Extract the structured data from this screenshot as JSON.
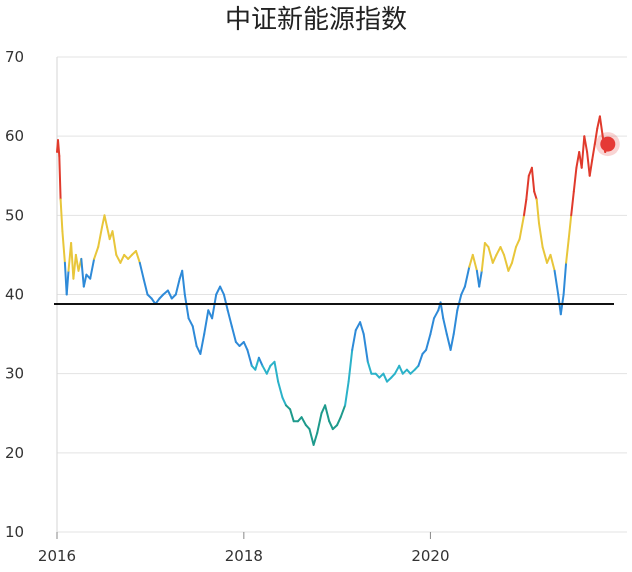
{
  "chart_data": {
    "type": "line",
    "title": "中证新能源指数",
    "xlabel": "",
    "ylabel": "",
    "ylim": [
      10,
      70
    ],
    "xlim": [
      "2016-01-01",
      "2021-12-31"
    ],
    "yticks": [
      "70",
      "60",
      "50",
      "40",
      "30",
      "20",
      "10"
    ],
    "xticks": [
      "2016",
      "2018",
      "2020"
    ],
    "grid": "horizontal",
    "reference_line": 38.8,
    "color_scale": {
      "red": "#e03a2c",
      "yellow": "#e8c63a",
      "blue": "#2e8ad8",
      "cyan": "#2bb2c9",
      "teal": "#1e9a8c"
    },
    "latest_marker": {
      "x": "2021-11-25",
      "y": 59,
      "color": "#e53935"
    },
    "series": [
      {
        "points": [
          [
            "2016-01-01",
            58
          ],
          [
            "2016-01-05",
            59.5
          ],
          [
            "2016-01-10",
            57.5
          ],
          [
            "2016-01-15",
            52
          ],
          [
            "2016-01-22",
            48
          ],
          [
            "2016-02-01",
            44
          ],
          [
            "2016-02-08",
            40
          ],
          [
            "2016-02-15",
            43
          ],
          [
            "2016-02-25",
            46.5
          ],
          [
            "2016-03-05",
            42
          ],
          [
            "2016-03-15",
            45
          ],
          [
            "2016-03-25",
            43
          ],
          [
            "2016-04-05",
            44.5
          ],
          [
            "2016-04-15",
            41
          ],
          [
            "2016-04-25",
            42.5
          ],
          [
            "2016-05-10",
            42
          ],
          [
            "2016-05-25",
            44.5
          ],
          [
            "2016-06-10",
            46
          ],
          [
            "2016-06-25",
            48.5
          ],
          [
            "2016-07-05",
            50
          ],
          [
            "2016-07-15",
            48.5
          ],
          [
            "2016-07-25",
            47
          ],
          [
            "2016-08-05",
            48
          ],
          [
            "2016-08-20",
            45
          ],
          [
            "2016-09-05",
            44
          ],
          [
            "2016-09-20",
            45
          ],
          [
            "2016-10-05",
            44.5
          ],
          [
            "2016-10-20",
            45
          ],
          [
            "2016-11-05",
            45.5
          ],
          [
            "2016-11-20",
            44
          ],
          [
            "2016-12-05",
            42
          ],
          [
            "2016-12-20",
            40
          ],
          [
            "2017-01-05",
            39.5
          ],
          [
            "2017-01-20",
            38.8
          ],
          [
            "2017-02-05",
            39.5
          ],
          [
            "2017-02-20",
            40
          ],
          [
            "2017-03-10",
            40.5
          ],
          [
            "2017-03-25",
            39.5
          ],
          [
            "2017-04-10",
            40
          ],
          [
            "2017-04-25",
            42
          ],
          [
            "2017-05-05",
            43
          ],
          [
            "2017-05-15",
            40
          ],
          [
            "2017-05-30",
            37
          ],
          [
            "2017-06-15",
            36
          ],
          [
            "2017-06-30",
            33.5
          ],
          [
            "2017-07-15",
            32.5
          ],
          [
            "2017-07-30",
            35
          ],
          [
            "2017-08-15",
            38
          ],
          [
            "2017-08-30",
            37
          ],
          [
            "2017-09-15",
            40
          ],
          [
            "2017-09-30",
            41
          ],
          [
            "2017-10-15",
            40
          ],
          [
            "2017-10-30",
            38
          ],
          [
            "2017-11-15",
            36
          ],
          [
            "2017-12-01",
            34
          ],
          [
            "2017-12-15",
            33.5
          ],
          [
            "2018-01-01",
            34
          ],
          [
            "2018-01-15",
            33
          ],
          [
            "2018-02-01",
            31
          ],
          [
            "2018-02-15",
            30.5
          ],
          [
            "2018-03-01",
            32
          ],
          [
            "2018-03-15",
            31
          ],
          [
            "2018-04-01",
            30
          ],
          [
            "2018-04-15",
            31
          ],
          [
            "2018-05-01",
            31.5
          ],
          [
            "2018-05-15",
            29
          ],
          [
            "2018-06-01",
            27
          ],
          [
            "2018-06-15",
            26
          ],
          [
            "2018-07-01",
            25.5
          ],
          [
            "2018-07-15",
            24
          ],
          [
            "2018-08-01",
            24
          ],
          [
            "2018-08-15",
            24.5
          ],
          [
            "2018-09-01",
            23.5
          ],
          [
            "2018-09-15",
            23
          ],
          [
            "2018-10-01",
            21
          ],
          [
            "2018-10-15",
            22.5
          ],
          [
            "2018-11-01",
            25
          ],
          [
            "2018-11-15",
            26
          ],
          [
            "2018-12-01",
            24
          ],
          [
            "2018-12-15",
            23
          ],
          [
            "2019-01-01",
            23.5
          ],
          [
            "2019-01-15",
            24.5
          ],
          [
            "2019-02-01",
            26
          ],
          [
            "2019-02-15",
            29
          ],
          [
            "2019-03-01",
            33
          ],
          [
            "2019-03-15",
            35.5
          ],
          [
            "2019-04-01",
            36.5
          ],
          [
            "2019-04-15",
            35
          ],
          [
            "2019-05-01",
            31.5
          ],
          [
            "2019-05-15",
            30
          ],
          [
            "2019-06-01",
            30
          ],
          [
            "2019-06-15",
            29.5
          ],
          [
            "2019-07-01",
            30
          ],
          [
            "2019-07-15",
            29
          ],
          [
            "2019-08-01",
            29.5
          ],
          [
            "2019-08-15",
            30
          ],
          [
            "2019-09-01",
            31
          ],
          [
            "2019-09-15",
            30
          ],
          [
            "2019-10-01",
            30.5
          ],
          [
            "2019-10-15",
            30
          ],
          [
            "2019-11-01",
            30.5
          ],
          [
            "2019-11-15",
            31
          ],
          [
            "2019-12-01",
            32.5
          ],
          [
            "2019-12-15",
            33
          ],
          [
            "2020-01-01",
            35
          ],
          [
            "2020-01-15",
            37
          ],
          [
            "2020-02-01",
            38
          ],
          [
            "2020-02-10",
            39
          ],
          [
            "2020-02-20",
            37
          ],
          [
            "2020-03-05",
            35
          ],
          [
            "2020-03-20",
            33
          ],
          [
            "2020-04-01",
            35
          ],
          [
            "2020-04-15",
            38
          ],
          [
            "2020-05-01",
            40
          ],
          [
            "2020-05-15",
            41
          ],
          [
            "2020-06-01",
            43.5
          ],
          [
            "2020-06-15",
            45
          ],
          [
            "2020-07-01",
            43
          ],
          [
            "2020-07-10",
            41
          ],
          [
            "2020-07-20",
            43
          ],
          [
            "2020-08-01",
            46.5
          ],
          [
            "2020-08-15",
            46
          ],
          [
            "2020-09-01",
            44
          ],
          [
            "2020-09-15",
            45
          ],
          [
            "2020-10-01",
            46
          ],
          [
            "2020-10-15",
            45
          ],
          [
            "2020-11-01",
            43
          ],
          [
            "2020-11-15",
            44
          ],
          [
            "2020-12-01",
            46
          ],
          [
            "2020-12-15",
            47
          ],
          [
            "2021-01-01",
            50
          ],
          [
            "2021-01-10",
            52
          ],
          [
            "2021-01-20",
            55
          ],
          [
            "2021-02-01",
            56
          ],
          [
            "2021-02-10",
            53
          ],
          [
            "2021-02-20",
            52
          ],
          [
            "2021-03-01",
            49
          ],
          [
            "2021-03-15",
            46
          ],
          [
            "2021-04-01",
            44
          ],
          [
            "2021-04-15",
            45
          ],
          [
            "2021-05-01",
            43
          ],
          [
            "2021-05-15",
            40
          ],
          [
            "2021-05-25",
            37.5
          ],
          [
            "2021-06-05",
            40
          ],
          [
            "2021-06-15",
            44
          ],
          [
            "2021-06-25",
            47
          ],
          [
            "2021-07-05",
            50
          ],
          [
            "2021-07-15",
            53
          ],
          [
            "2021-07-25",
            56
          ],
          [
            "2021-08-05",
            58
          ],
          [
            "2021-08-15",
            56
          ],
          [
            "2021-08-25",
            60
          ],
          [
            "2021-09-05",
            58
          ],
          [
            "2021-09-15",
            55
          ],
          [
            "2021-09-25",
            57
          ],
          [
            "2021-10-05",
            59
          ],
          [
            "2021-10-15",
            61
          ],
          [
            "2021-10-25",
            62.5
          ],
          [
            "2021-11-05",
            60
          ],
          [
            "2021-11-15",
            58
          ],
          [
            "2021-11-25",
            59
          ]
        ]
      }
    ]
  }
}
